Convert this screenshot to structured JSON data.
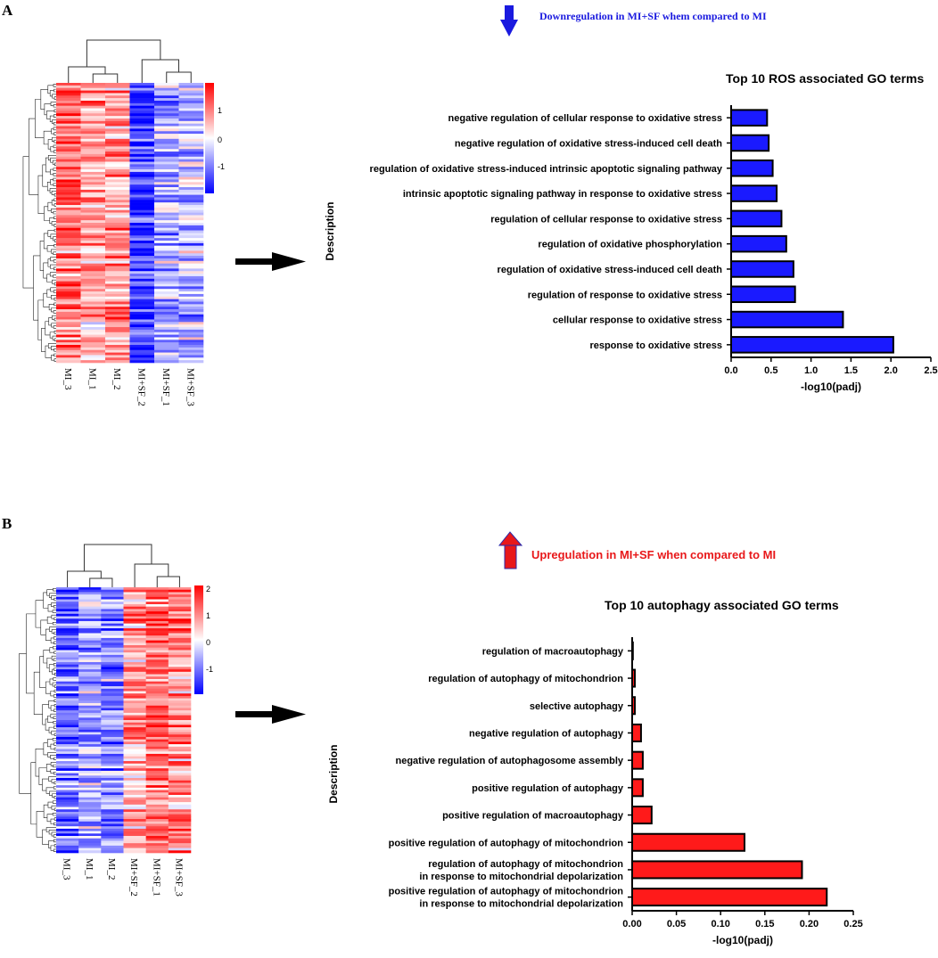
{
  "panel_a": {
    "letter": "A",
    "annotation": {
      "prefix": "Downregulation in ",
      "group": "MI+SF",
      "suffix": " whem compared to MI",
      "color": "#1a1adf",
      "arrow": "down"
    },
    "heatmap": {
      "samples": [
        "MI_3",
        "MI_1",
        "MI_2",
        "MI+SF_2",
        "MI+SF_1",
        "MI+SF_3"
      ],
      "sample_means": [
        0.9,
        0.55,
        0.7,
        -1.2,
        -0.5,
        -0.5
      ],
      "legend_ticks": [
        "1",
        "0",
        "-1"
      ]
    }
  },
  "panel_b": {
    "letter": "B",
    "annotation": {
      "text": "Upregulation in MI+SF when compared to MI",
      "color": "#e8181a",
      "arrow": "up"
    },
    "heatmap": {
      "samples": [
        "MI_3",
        "MI_1",
        "MI_2",
        "MI+SF_2",
        "MI+SF_1",
        "MI+SF_3"
      ],
      "sample_means": [
        -0.8,
        -0.55,
        -0.7,
        0.55,
        0.9,
        0.7
      ],
      "legend_ticks": [
        "2",
        "1",
        "0",
        "-1"
      ]
    }
  },
  "chart_data": [
    {
      "type": "bar",
      "orientation": "horizontal",
      "title": "Top 10 ROS associated GO terms",
      "xlabel": "-log10(padj)",
      "ylabel": "Description",
      "bar_color": "#1a1aff",
      "xlim": [
        0,
        2.5
      ],
      "xticks": [
        "0.0",
        "0.5",
        "1.0",
        "1.5",
        "2.0",
        "2.5"
      ],
      "categories": [
        "negative regulation of cellular response to oxidative stress",
        "negative regulation of oxidative stress-induced cell death",
        "regulation of oxidative stress-induced intrinsic apoptotic signaling pathway",
        "intrinsic apoptotic signaling pathway in response to oxidative stress",
        "regulation of cellular response to oxidative stress",
        "regulation of oxidative phosphorylation",
        "regulation of oxidative stress-induced cell death",
        "regulation of response to oxidative stress",
        "cellular response to oxidative stress",
        "response to oxidative stress"
      ],
      "values": [
        0.45,
        0.47,
        0.52,
        0.57,
        0.63,
        0.69,
        0.78,
        0.8,
        1.4,
        2.03
      ]
    },
    {
      "type": "bar",
      "orientation": "horizontal",
      "title": "Top 10 autophagy associated GO terms",
      "xlabel": "-log10(padj)",
      "ylabel": "Description",
      "bar_color": "#ff1a1a",
      "xlim": [
        0,
        0.25
      ],
      "xticks": [
        "0.00",
        "0.05",
        "0.10",
        "0.15",
        "0.20",
        "0.25"
      ],
      "categories": [
        "regulation of macroautophagy",
        "regulation of autophagy of mitochondrion",
        "selective autophagy",
        "negative regulation of autophagy",
        "negative regulation of autophagosome assembly",
        "positive regulation of autophagy",
        "positive regulation of macroautophagy",
        "positive regulation of autophagy of mitochondrion",
        "regulation of autophagy of mitochondrion\nin response to mitochondrial depolarization",
        "positive regulation of autophagy of mitochondrion\nin response to mitochondrial depolarization"
      ],
      "values": [
        0.0005,
        0.003,
        0.003,
        0.01,
        0.012,
        0.012,
        0.022,
        0.127,
        0.192,
        0.22
      ]
    }
  ]
}
